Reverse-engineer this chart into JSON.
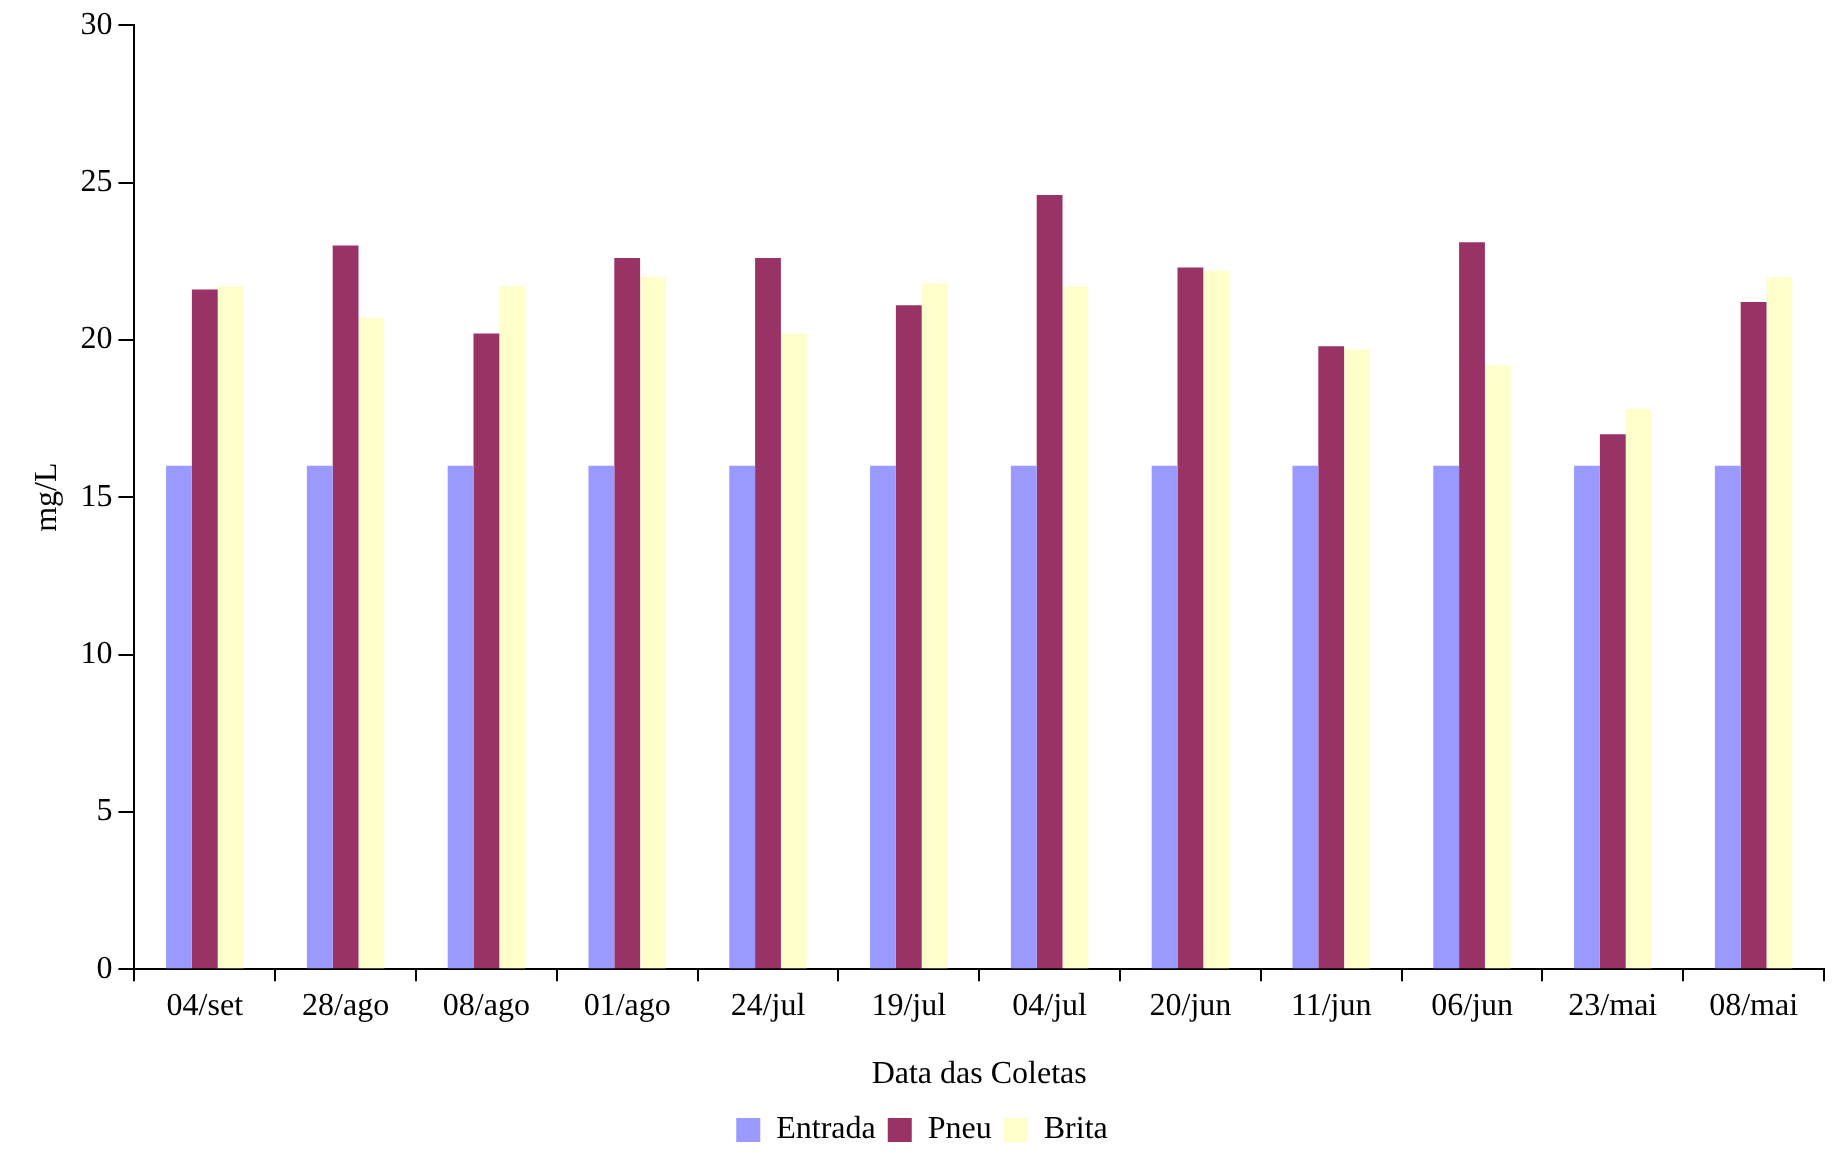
{
  "chart_data": {
    "type": "bar",
    "xlabel": "Data das Coletas",
    "ylabel": "mg/L",
    "categories": [
      "04/set",
      "28/ago",
      "08/ago",
      "01/ago",
      "24/jul",
      "19/jul",
      "04/jul",
      "20/jun",
      "11/jun",
      "06/jun",
      "23/mai",
      "08/mai"
    ],
    "series": [
      {
        "name": "Entrada",
        "color": "#9999ff",
        "values": [
          16,
          16,
          16,
          16,
          16,
          16,
          16,
          16,
          16,
          16,
          16,
          16
        ]
      },
      {
        "name": "Pneu",
        "color": "#993366",
        "values": [
          21.6,
          23.0,
          20.2,
          22.6,
          22.6,
          21.1,
          24.6,
          22.3,
          19.8,
          23.1,
          17.0,
          21.2
        ]
      },
      {
        "name": "Brita",
        "color": "#ffffcc",
        "values": [
          21.7,
          20.7,
          21.7,
          22.0,
          20.2,
          21.8,
          21.7,
          22.2,
          19.7,
          19.2,
          17.8,
          22.0
        ]
      }
    ],
    "ylim": [
      0,
      30
    ],
    "yticks": [
      0,
      5,
      10,
      15,
      20,
      25,
      30
    ],
    "grid": false,
    "legend": "bottom"
  }
}
